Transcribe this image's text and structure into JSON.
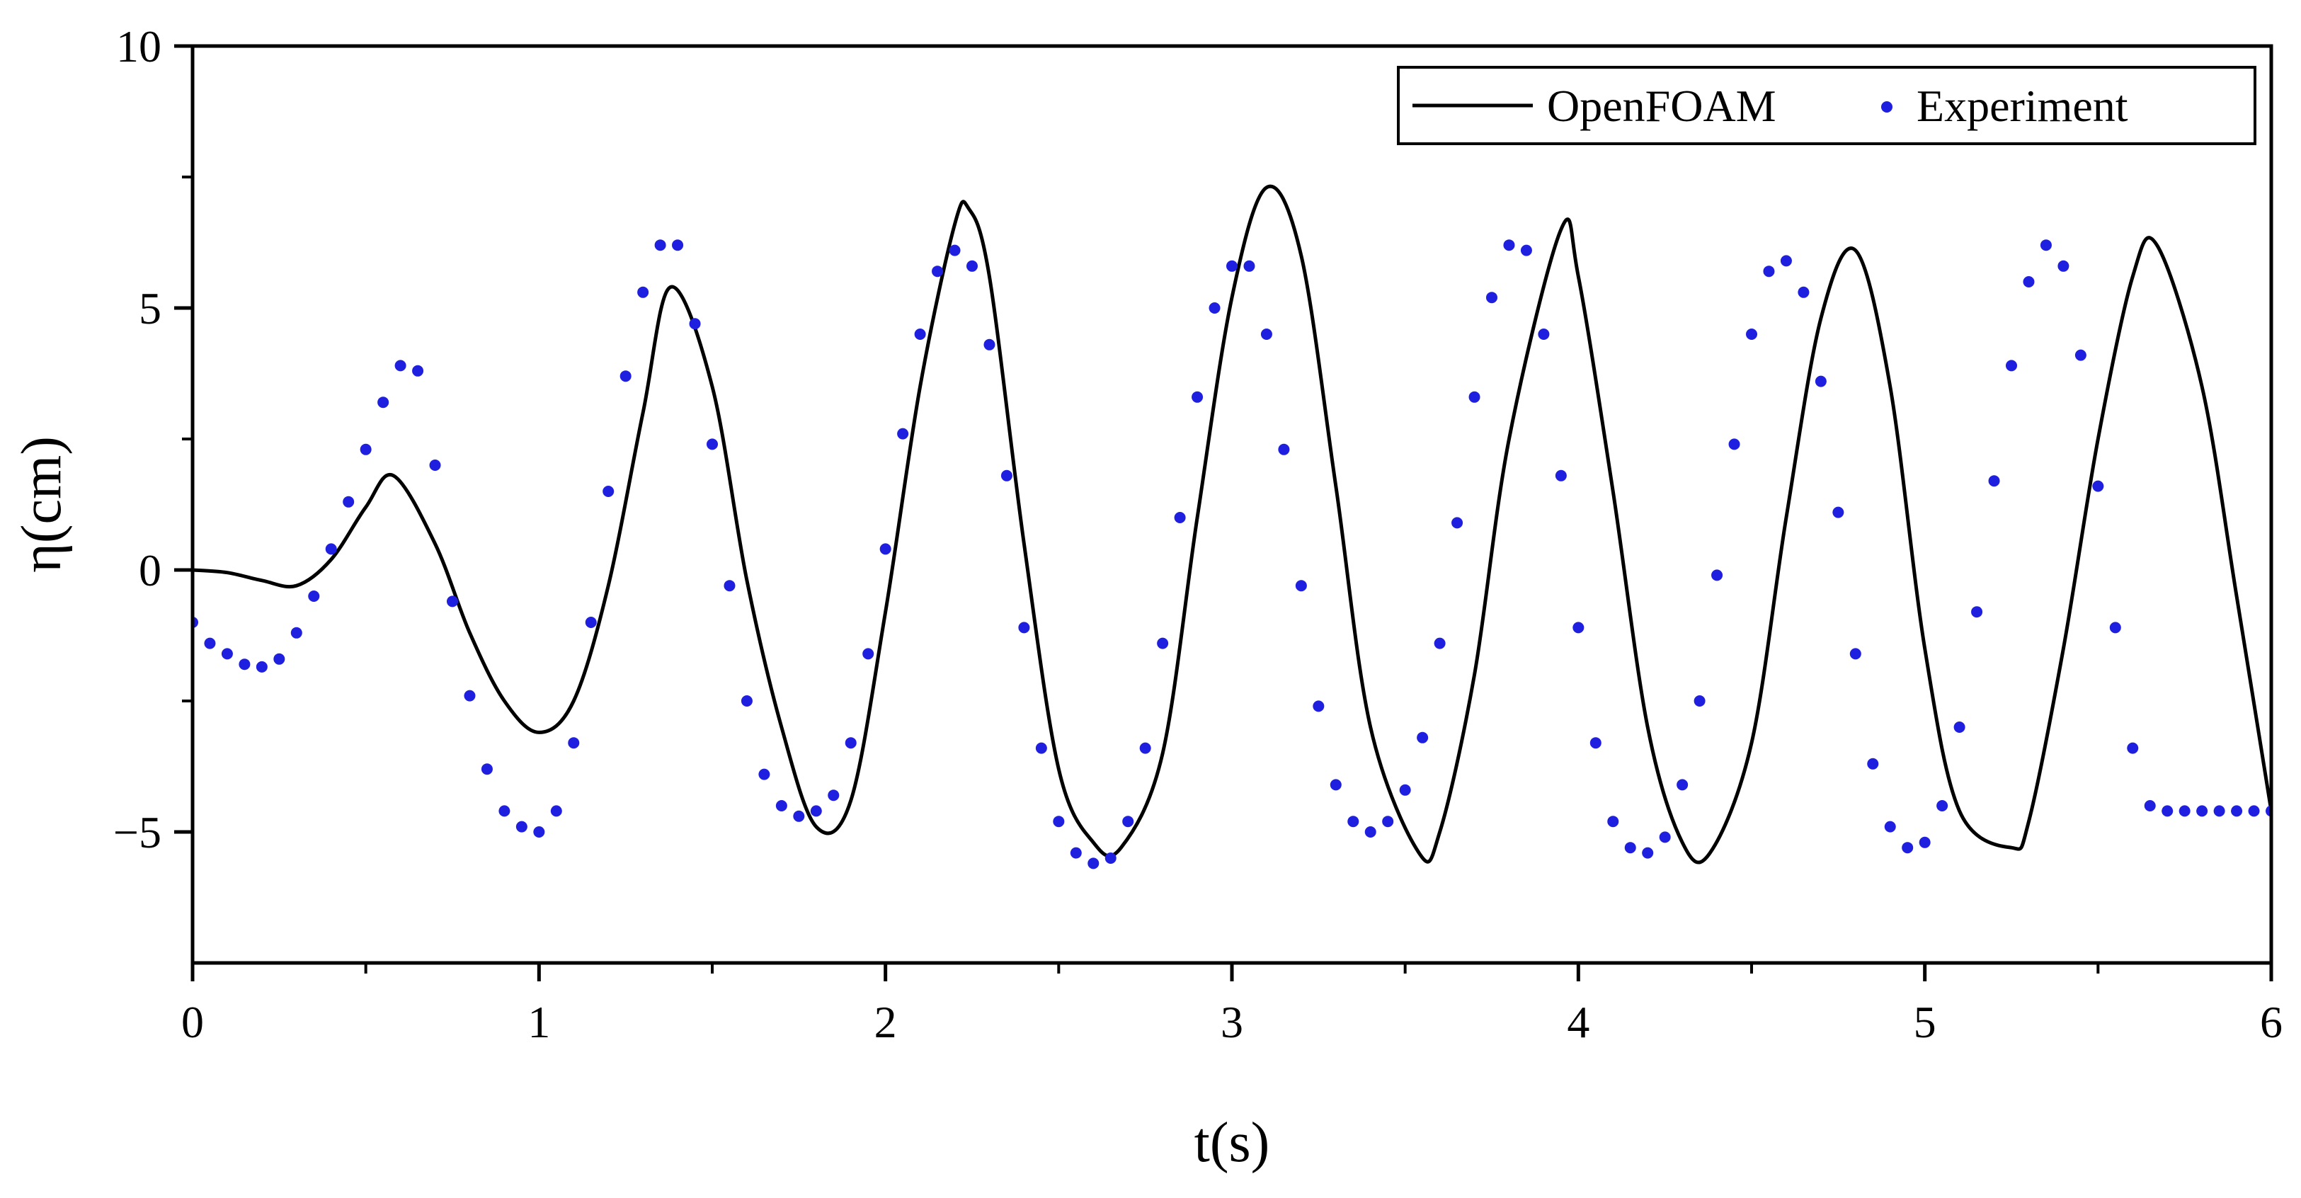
{
  "chart_data": {
    "type": "line",
    "xlabel": "t(s)",
    "ylabel": "η(cm)",
    "xlim": [
      0,
      6
    ],
    "ylim": [
      -7.5,
      10
    ],
    "x_ticks": [
      0,
      1,
      2,
      3,
      4,
      5,
      6
    ],
    "x_tick_labels": [
      "0",
      "1",
      "2",
      "3",
      "4",
      "5",
      "6"
    ],
    "y_ticks": [
      -5,
      0,
      5,
      10
    ],
    "y_tick_labels": [
      "−5",
      "0",
      "5",
      "10"
    ],
    "grid": false,
    "legend_position": "top-right",
    "series": [
      {
        "name": "OpenFOAM",
        "style": "line",
        "color": "#000000",
        "x": [
          0,
          0.1,
          0.2,
          0.3,
          0.4,
          0.5,
          0.58,
          0.7,
          0.8,
          0.9,
          1.0,
          1.1,
          1.2,
          1.3,
          1.38,
          1.5,
          1.6,
          1.7,
          1.8,
          1.9,
          2.0,
          2.1,
          2.2,
          2.24,
          2.3,
          2.4,
          2.5,
          2.6,
          2.68,
          2.8,
          2.9,
          3.0,
          3.1,
          3.2,
          3.3,
          3.4,
          3.54,
          3.6,
          3.7,
          3.8,
          3.95,
          4.0,
          4.1,
          4.2,
          4.3,
          4.38,
          4.5,
          4.6,
          4.7,
          4.8,
          4.9,
          5.0,
          5.1,
          5.25,
          5.3,
          5.4,
          5.5,
          5.6,
          5.67,
          5.8,
          5.9,
          6.0
        ],
        "y": [
          0.0,
          -0.05,
          -0.2,
          -0.3,
          0.2,
          1.2,
          1.8,
          0.5,
          -1.2,
          -2.5,
          -3.1,
          -2.5,
          -0.3,
          3.0,
          5.4,
          3.5,
          -0.2,
          -3.0,
          -4.9,
          -4.4,
          -0.8,
          3.5,
          6.6,
          6.9,
          5.6,
          0.5,
          -3.8,
          -5.2,
          -5.3,
          -3.5,
          1.0,
          5.2,
          7.3,
          6.0,
          1.6,
          -3.0,
          -5.4,
          -5.0,
          -2.0,
          2.5,
          6.5,
          5.6,
          1.5,
          -3.0,
          -5.2,
          -5.4,
          -3.3,
          1.0,
          4.8,
          6.1,
          3.5,
          -1.5,
          -4.6,
          -5.3,
          -4.8,
          -1.5,
          2.5,
          5.6,
          6.2,
          3.5,
          -0.5,
          -4.6
        ]
      },
      {
        "name": "Experiment",
        "style": "points",
        "color": "#1f1fe0",
        "x": [
          0,
          0.05,
          0.1,
          0.15,
          0.2,
          0.25,
          0.3,
          0.35,
          0.4,
          0.45,
          0.5,
          0.55,
          0.6,
          0.65,
          0.7,
          0.75,
          0.8,
          0.85,
          0.9,
          0.95,
          1.0,
          1.05,
          1.1,
          1.15,
          1.2,
          1.25,
          1.3,
          1.35,
          1.4,
          1.45,
          1.5,
          1.55,
          1.6,
          1.65,
          1.7,
          1.75,
          1.8,
          1.85,
          1.9,
          1.95,
          2.0,
          2.05,
          2.1,
          2.15,
          2.2,
          2.25,
          2.3,
          2.35,
          2.4,
          2.45,
          2.5,
          2.55,
          2.6,
          2.65,
          2.7,
          2.75,
          2.8,
          2.85,
          2.9,
          2.95,
          3.0,
          3.05,
          3.1,
          3.15,
          3.2,
          3.25,
          3.3,
          3.35,
          3.4,
          3.45,
          3.5,
          3.55,
          3.6,
          3.65,
          3.7,
          3.75,
          3.8,
          3.85,
          3.9,
          3.95,
          4.0,
          4.05,
          4.1,
          4.15,
          4.2,
          4.25,
          4.3,
          4.35,
          4.4,
          4.45,
          4.5,
          4.55,
          4.6,
          4.65,
          4.7,
          4.75,
          4.8,
          4.85,
          4.9,
          4.95,
          5.0,
          5.05,
          5.1,
          5.15,
          5.2,
          5.25,
          5.3,
          5.35,
          5.4,
          5.45,
          5.5,
          5.55,
          5.6,
          5.65,
          5.7,
          5.75,
          5.8,
          5.85,
          5.9,
          5.95,
          6.0
        ],
        "y": [
          -1.0,
          -1.4,
          -1.6,
          -1.8,
          -1.85,
          -1.7,
          -1.2,
          -0.5,
          0.4,
          1.3,
          2.3,
          3.2,
          3.9,
          3.8,
          2.0,
          -0.6,
          -2.4,
          -3.8,
          -4.6,
          -4.9,
          -5.0,
          -4.6,
          -3.3,
          -1.0,
          1.5,
          3.7,
          5.3,
          6.2,
          6.2,
          4.7,
          2.4,
          -0.3,
          -2.5,
          -3.9,
          -4.5,
          -4.7,
          -4.6,
          -4.3,
          -3.3,
          -1.6,
          0.4,
          2.6,
          4.5,
          5.7,
          6.1,
          5.8,
          4.3,
          1.8,
          -1.1,
          -3.4,
          -4.8,
          -5.4,
          -5.6,
          -5.5,
          -4.8,
          -3.4,
          -1.4,
          1.0,
          3.3,
          5.0,
          5.8,
          5.8,
          4.5,
          2.3,
          -0.3,
          -2.6,
          -4.1,
          -4.8,
          -5.0,
          -4.8,
          -4.2,
          -3.2,
          -1.4,
          0.9,
          3.3,
          5.2,
          6.2,
          6.1,
          4.5,
          1.8,
          -1.1,
          -3.3,
          -4.8,
          -5.3,
          -5.4,
          -5.1,
          -4.1,
          -2.5,
          -0.1,
          2.4,
          4.5,
          5.7,
          5.9,
          5.3,
          3.6,
          1.1,
          -1.6,
          -3.7,
          -4.9,
          -5.3,
          -5.2,
          -4.5,
          -3.0,
          -0.8,
          1.7,
          3.9,
          5.5,
          6.2,
          5.8,
          4.1,
          1.6,
          -1.1,
          -3.4,
          -4.5,
          -4.6,
          -4.6,
          -4.6,
          -4.6,
          -4.6,
          -4.6,
          -4.6
        ]
      }
    ]
  }
}
